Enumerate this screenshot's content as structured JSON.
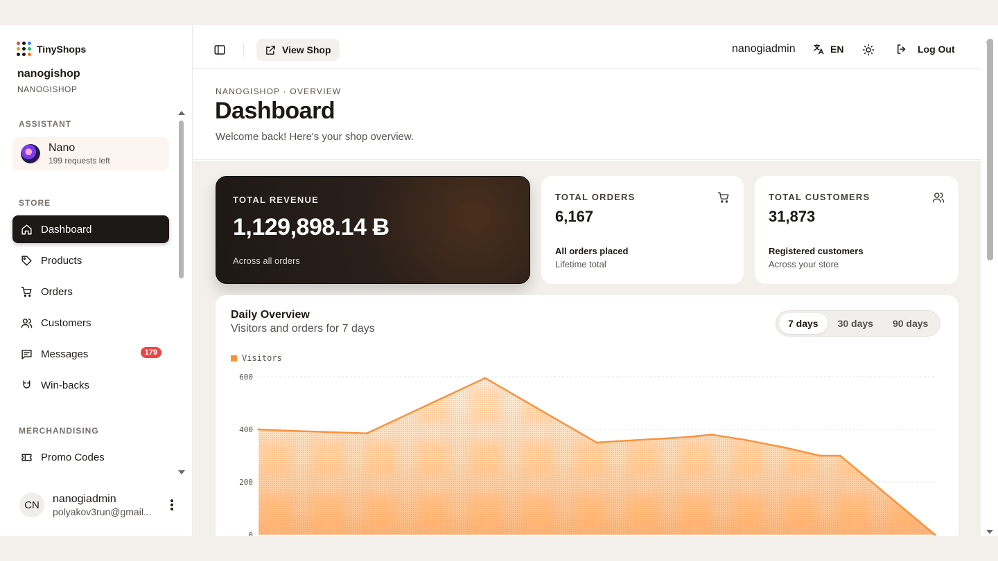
{
  "brand": {
    "name": "TinyShops",
    "dot_colors": [
      "#ef4444",
      "#1c1917",
      "#3b82f6",
      "#f59e0b",
      "#1c1917",
      "#22c55e",
      "#1c1917",
      "#1c1917",
      "#f97316"
    ]
  },
  "shop": {
    "name": "nanogishop",
    "sub": "NANOGISHOP"
  },
  "sidebar": {
    "assistant_label": "ASSISTANT",
    "assistant": {
      "name": "Nano",
      "sub": "199 requests left"
    },
    "store_label": "STORE",
    "items": [
      {
        "label": "Dashboard",
        "icon": "home-icon",
        "active": true
      },
      {
        "label": "Products",
        "icon": "tag-icon"
      },
      {
        "label": "Orders",
        "icon": "cart-icon"
      },
      {
        "label": "Customers",
        "icon": "users-icon"
      },
      {
        "label": "Messages",
        "icon": "message-icon",
        "badge": "179"
      },
      {
        "label": "Win-backs",
        "icon": "magnet-icon"
      }
    ],
    "merch_label": "MERCHANDISING",
    "merch_items": [
      {
        "label": "Promo Codes",
        "icon": "ticket-icon"
      }
    ],
    "user": {
      "initials": "CN",
      "name": "nanogiadmin",
      "email": "polyakov3run@gmail..."
    }
  },
  "topbar": {
    "view_shop": "View Shop",
    "username": "nanogiadmin",
    "language": "EN",
    "logout": "Log Out"
  },
  "header": {
    "breadcrumb": "NANOGISHOP · OVERVIEW",
    "title": "Dashboard",
    "subtitle": "Welcome back! Here's your shop overview."
  },
  "stats": {
    "revenue": {
      "label": "TOTAL REVENUE",
      "value": "1,129,898.14 Ƀ",
      "sub": "Across all orders"
    },
    "orders": {
      "label": "TOTAL ORDERS",
      "value": "6,167",
      "sub1": "All orders placed",
      "sub2": "Lifetime total"
    },
    "customers": {
      "label": "TOTAL CUSTOMERS",
      "value": "31,873",
      "sub1": "Registered customers",
      "sub2": "Across your store"
    }
  },
  "chart": {
    "title": "Daily Overview",
    "subtitle": "Visitors and orders for 7 days",
    "ranges": [
      "7 days",
      "30 days",
      "90 days"
    ],
    "active_range": "7 days",
    "legend": "Visitors",
    "accent": "#fb923c"
  },
  "chart_data": {
    "type": "area",
    "series": [
      {
        "name": "Visitors",
        "x": [
          0,
          0.04,
          0.1,
          0.16,
          0.335,
          0.5,
          0.53,
          0.63,
          0.67,
          0.72,
          0.78,
          0.83,
          0.86,
          1.0
        ],
        "values": [
          400,
          395,
          390,
          385,
          595,
          350,
          355,
          370,
          380,
          360,
          330,
          300,
          300,
          0
        ]
      }
    ],
    "yticks": [
      "600",
      "400",
      "200",
      "0"
    ],
    "ylim": [
      0,
      600
    ],
    "grid": true,
    "legend_position": "top-left"
  }
}
